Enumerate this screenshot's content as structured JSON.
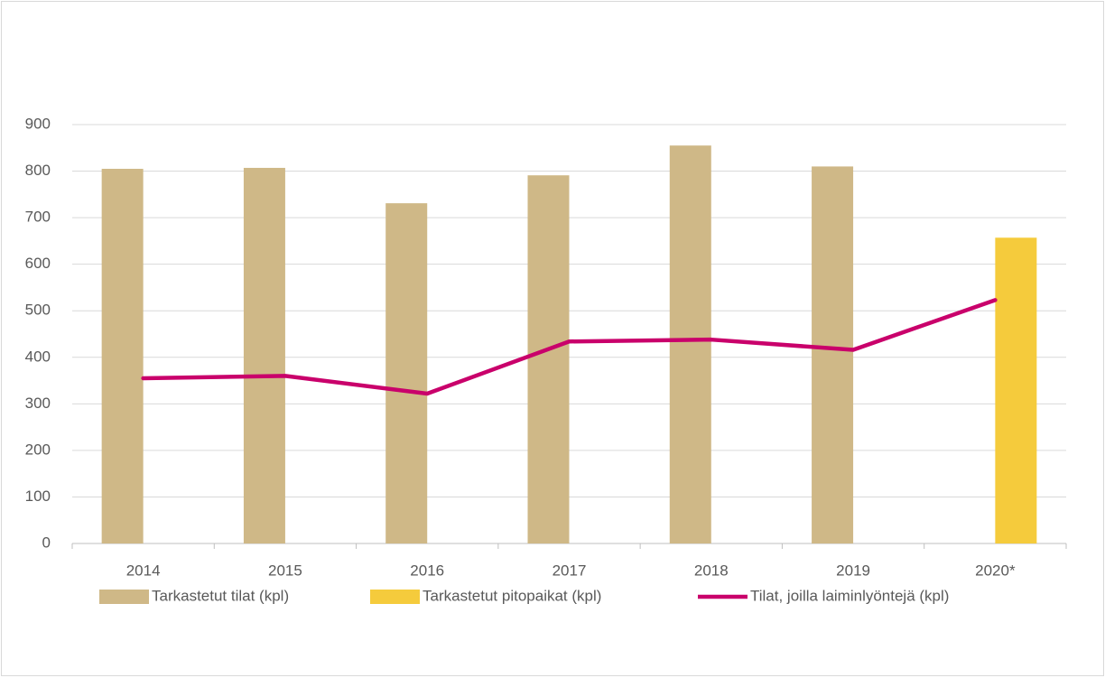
{
  "chart_data": {
    "type": "bar",
    "categories": [
      "2014",
      "2015",
      "2016",
      "2017",
      "2018",
      "2019",
      "2020*"
    ],
    "series": [
      {
        "name": "Tarkastetut tilat (kpl)",
        "type": "bar",
        "color": "#cfb887",
        "values": [
          805,
          807,
          731,
          791,
          855,
          810,
          null
        ]
      },
      {
        "name": "Tarkastetut pitopaikat (kpl)",
        "type": "bar",
        "color": "#f5cb3c",
        "values": [
          null,
          null,
          null,
          null,
          null,
          null,
          657
        ]
      },
      {
        "name": "Tilat, joilla laiminlyöntejä (kpl)",
        "type": "line",
        "color": "#c9006b",
        "values": [
          355,
          360,
          322,
          434,
          438,
          416,
          523
        ]
      }
    ],
    "ylim": [
      0,
      900
    ],
    "yticks": [
      0,
      100,
      200,
      300,
      400,
      500,
      600,
      700,
      800,
      900
    ],
    "grid": true,
    "legend": "bottom"
  }
}
